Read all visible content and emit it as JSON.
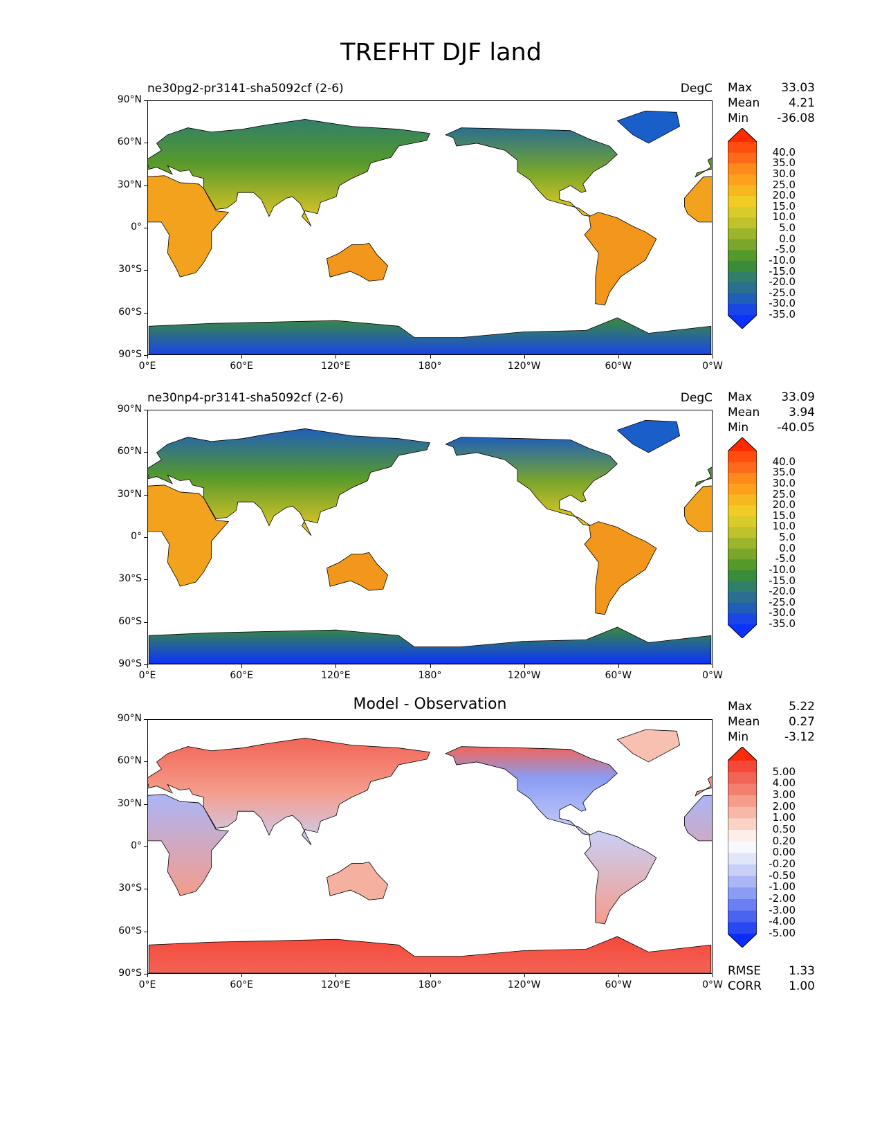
{
  "figure": {
    "title": "TREFHT DJF land"
  },
  "axes": {
    "ylabels": [
      "90°N",
      "60°N",
      "30°N",
      "0°",
      "30°S",
      "60°S",
      "90°S"
    ],
    "xlabels": [
      "0°E",
      "60°E",
      "120°E",
      "180°",
      "120°W",
      "60°W",
      "0°W"
    ]
  },
  "panels": [
    {
      "name": "test",
      "title": "ne30pg2-pr3141-sha5092cf (2-6)",
      "units": "DegC",
      "stats": {
        "max_label": "Max",
        "max": "33.03",
        "mean_label": "Mean",
        "mean": "4.21",
        "min_label": "Min",
        "min": "-36.08"
      },
      "colorbar": {
        "labels": [
          "40.0",
          "35.0",
          "30.0",
          "25.0",
          "20.0",
          "15.0",
          "10.0",
          "5.0",
          "0.0",
          "-5.0",
          "-10.0",
          "-15.0",
          "-20.0",
          "-25.0",
          "-30.0",
          "-35.0"
        ],
        "colors": [
          "#ff2a00",
          "#ff4d10",
          "#ff6a1a",
          "#ff8a1c",
          "#ffa01c",
          "#f7b81f",
          "#f0cc25",
          "#d9cc2a",
          "#bfc22a",
          "#9cb52b",
          "#79a62b",
          "#56992b",
          "#3a8c3a",
          "#2f7f6a",
          "#2a6f8f",
          "#1f5fb8",
          "#1a46e6",
          "#0a33ff"
        ]
      },
      "chart_data": {
        "type": "heatmap",
        "variable": "TREFHT",
        "season": "DJF",
        "region": "land",
        "units": "DegC",
        "max": 33.03,
        "mean": 4.21,
        "min": -36.08,
        "levels": [
          -35,
          -30,
          -25,
          -20,
          -15,
          -10,
          -5,
          0,
          5,
          10,
          15,
          20,
          25,
          30,
          35,
          40
        ],
        "xlim": [
          0,
          360
        ],
        "ylim": [
          -90,
          90
        ]
      }
    },
    {
      "name": "ref",
      "title": "ne30np4-pr3141-sha5092cf (2-6)",
      "units": "DegC",
      "stats": {
        "max_label": "Max",
        "max": "33.09",
        "mean_label": "Mean",
        "mean": "3.94",
        "min_label": "Min",
        "min": "-40.05"
      },
      "colorbar": {
        "labels": [
          "40.0",
          "35.0",
          "30.0",
          "25.0",
          "20.0",
          "15.0",
          "10.0",
          "5.0",
          "0.0",
          "-5.0",
          "-10.0",
          "-15.0",
          "-20.0",
          "-25.0",
          "-30.0",
          "-35.0"
        ],
        "colors": [
          "#ff2a00",
          "#ff4d10",
          "#ff6a1a",
          "#ff8a1c",
          "#ffa01c",
          "#f7b81f",
          "#f0cc25",
          "#d9cc2a",
          "#bfc22a",
          "#9cb52b",
          "#79a62b",
          "#56992b",
          "#3a8c3a",
          "#2f7f6a",
          "#2a6f8f",
          "#1f5fb8",
          "#1a46e6",
          "#0a33ff"
        ]
      },
      "chart_data": {
        "type": "heatmap",
        "variable": "TREFHT",
        "season": "DJF",
        "region": "land",
        "units": "DegC",
        "max": 33.09,
        "mean": 3.94,
        "min": -40.05,
        "levels": [
          -35,
          -30,
          -25,
          -20,
          -15,
          -10,
          -5,
          0,
          5,
          10,
          15,
          20,
          25,
          30,
          35,
          40
        ],
        "xlim": [
          0,
          360
        ],
        "ylim": [
          -90,
          90
        ]
      }
    },
    {
      "name": "diff",
      "title": "Model - Observation",
      "units": "",
      "stats": {
        "max_label": "Max",
        "max": "5.22",
        "mean_label": "Mean",
        "mean": "0.27",
        "min_label": "Min",
        "min": "-3.12"
      },
      "extra": {
        "rmse_label": "RMSE",
        "rmse": "1.33",
        "corr_label": "CORR",
        "corr": "1.00"
      },
      "colorbar": {
        "labels": [
          "5.00",
          "4.00",
          "3.00",
          "2.00",
          "1.00",
          "0.50",
          "0.20",
          "0.00",
          "-0.20",
          "-0.50",
          "-1.00",
          "-2.00",
          "-3.00",
          "-4.00",
          "-5.00"
        ],
        "colors": [
          "#ff2a0a",
          "#f5483a",
          "#f26456",
          "#f3806f",
          "#f59c8b",
          "#f7b8a8",
          "#fad3c6",
          "#fdeee8",
          "#f8f8ff",
          "#e2e6fb",
          "#c8d0f8",
          "#aab6f6",
          "#8a9cf4",
          "#6a80f2",
          "#4a64f0",
          "#2a48f2",
          "#0a2cff"
        ]
      },
      "chart_data": {
        "type": "heatmap",
        "variable": "TREFHT",
        "season": "DJF",
        "region": "land",
        "max": 5.22,
        "mean": 0.27,
        "min": -3.12,
        "rmse": 1.33,
        "corr": 1.0,
        "levels": [
          -5,
          -4,
          -3,
          -2,
          -1,
          -0.5,
          -0.2,
          0,
          0.2,
          0.5,
          1,
          2,
          3,
          4,
          5
        ],
        "xlim": [
          0,
          360
        ],
        "ylim": [
          -90,
          90
        ]
      }
    }
  ]
}
